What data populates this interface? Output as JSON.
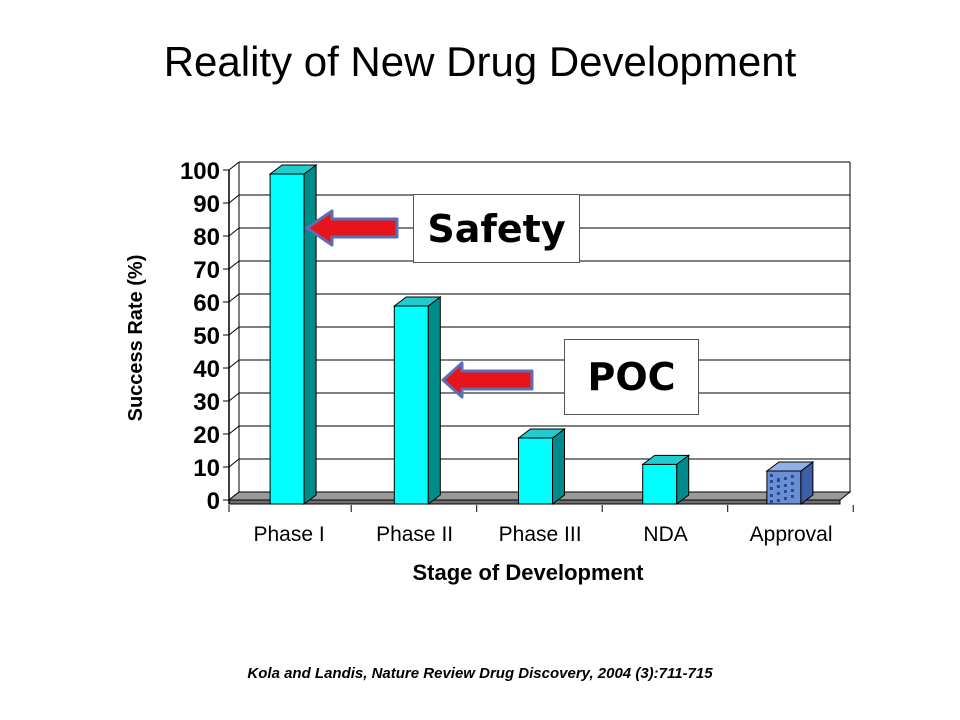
{
  "slide": {
    "title": "Reality of New Drug Development",
    "citation": "Kola and Landis, Nature Review Drug Discovery, 2004 (3):711-715"
  },
  "callouts": {
    "safety": "Safety",
    "poc": "POC"
  },
  "colors": {
    "bar_face": "#00FFFF",
    "bar_side": "#008B8B",
    "bar_top": "#22CCCC",
    "approval_bar": "#6A8FD4",
    "arrow_fill": "#E8141B",
    "arrow_outline": "#5B6FB5",
    "floor": "#9A9A9A"
  },
  "chart_data": {
    "type": "bar",
    "categories": [
      "Phase I",
      "Phase II",
      "Phase III",
      "NDA",
      "Approval"
    ],
    "values": [
      100,
      60,
      20,
      12,
      10
    ],
    "xlabel": "Stage of Development",
    "ylabel": "Success Rate (%)",
    "ylim": [
      0,
      100
    ],
    "yticks": [
      0,
      10,
      20,
      30,
      40,
      50,
      60,
      70,
      80,
      90,
      100
    ],
    "grid": true,
    "three_d": true
  }
}
